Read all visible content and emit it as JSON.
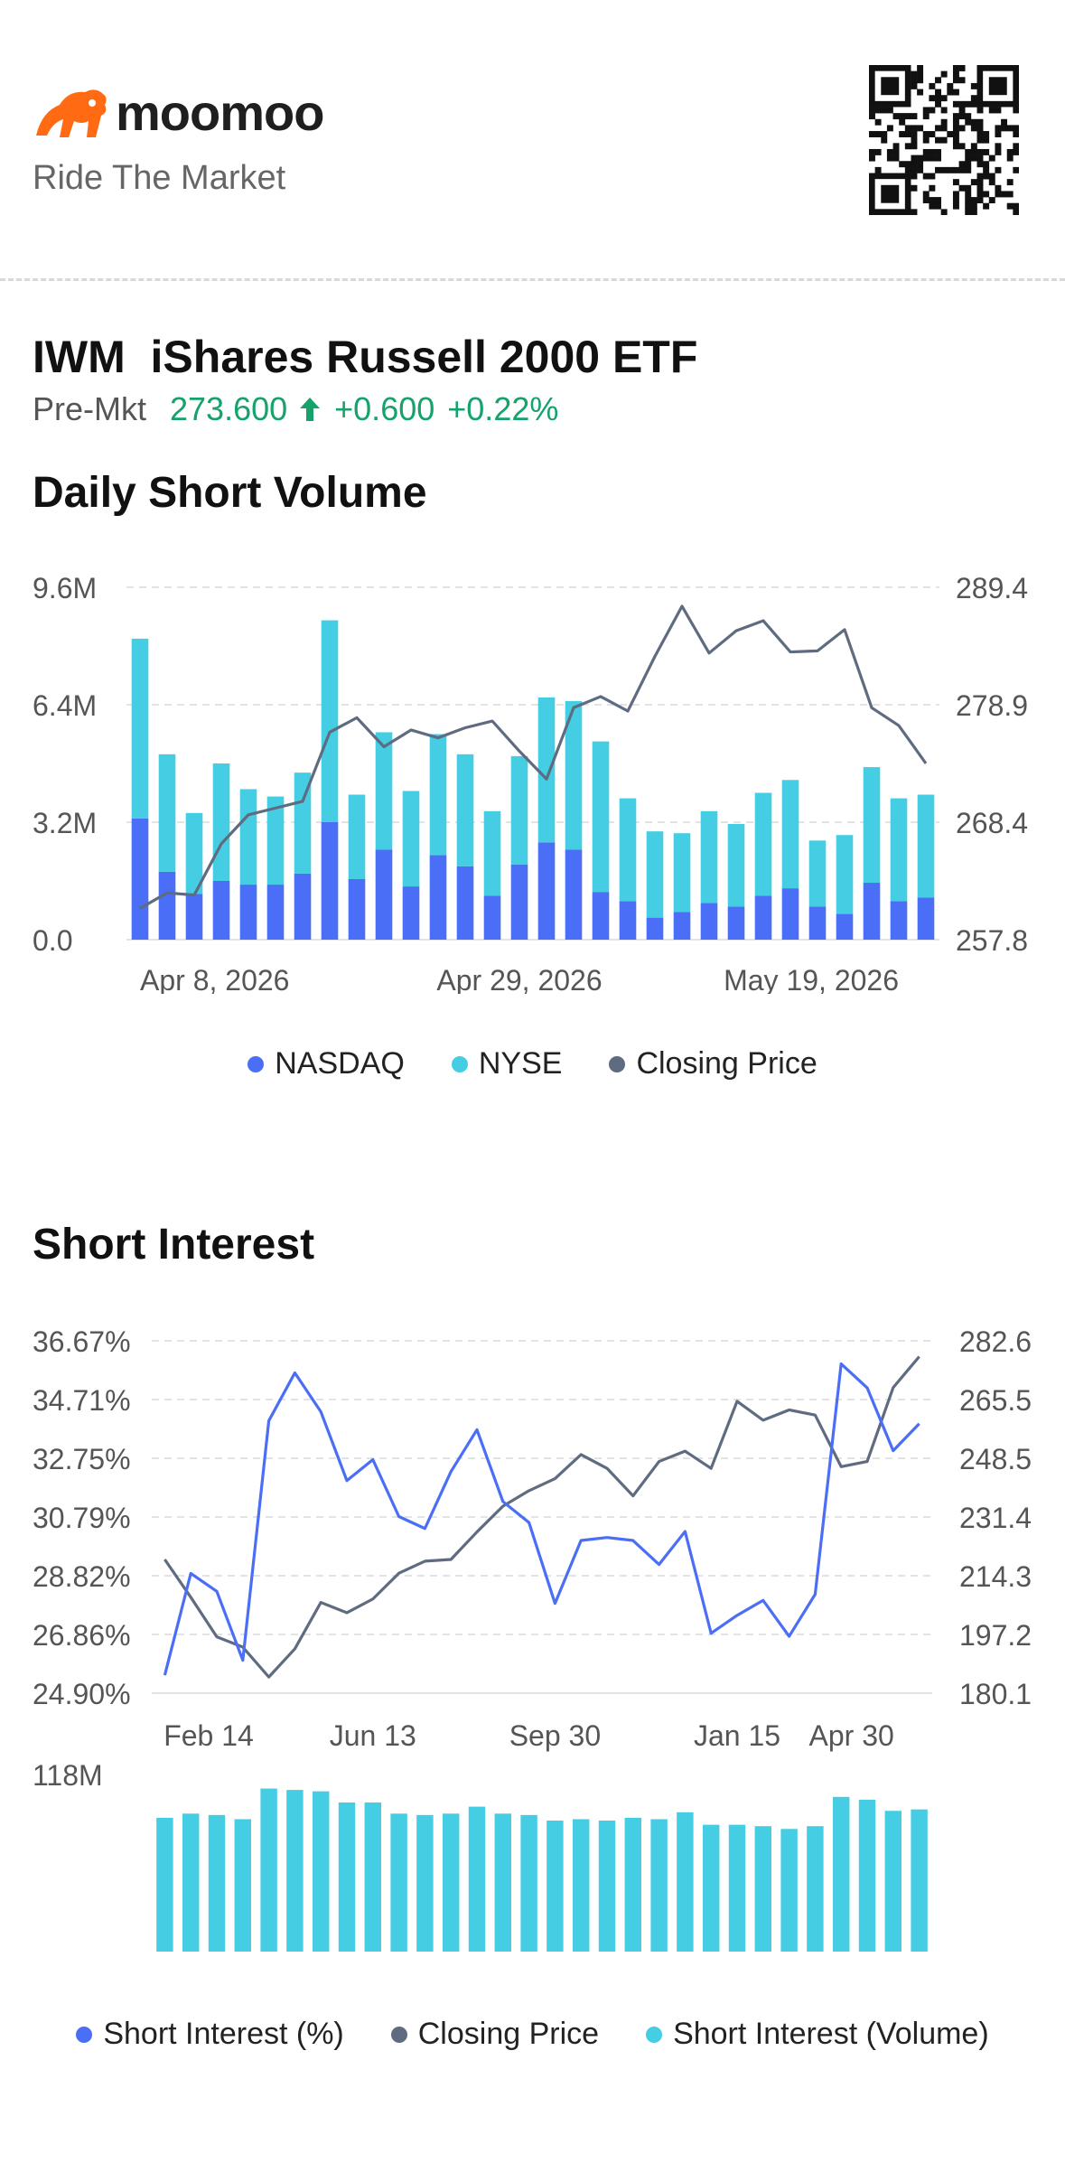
{
  "brand": {
    "name": "moomoo",
    "tagline": "Ride The Market",
    "color": "#ff6a13"
  },
  "ticker": {
    "symbol": "IWM",
    "name": "iShares Russell 2000 ETF",
    "session": "Pre-Mkt",
    "price": "273.600",
    "change": "+0.600",
    "change_pct": "+0.22%",
    "up_color": "#15a36b"
  },
  "daily_short_volume": {
    "title": "Daily Short Volume",
    "legend": [
      {
        "label": "NASDAQ",
        "color": "#4a6ef5"
      },
      {
        "label": "NYSE",
        "color": "#45cde3"
      },
      {
        "label": "Closing Price",
        "color": "#5f6b80"
      }
    ]
  },
  "short_interest": {
    "title": "Short Interest",
    "legend": [
      {
        "label": "Short Interest (%)",
        "color": "#4a6ef5"
      },
      {
        "label": "Closing Price",
        "color": "#5f6b80"
      },
      {
        "label": "Short Interest (Volume)",
        "color": "#45cde3"
      }
    ]
  },
  "chart_data": [
    {
      "type": "bar",
      "title": "Daily Short Volume",
      "stacked": true,
      "y_left_ticks": [
        "9.6M",
        "6.4M",
        "3.2M",
        "0.0"
      ],
      "y_right_ticks": [
        "289.4",
        "278.9",
        "268.4",
        "257.8"
      ],
      "ylim_left": [
        0,
        9.6
      ],
      "ylim_right": [
        257.8,
        289.4
      ],
      "x_tick_labels": [
        "Apr 8, 2026",
        "Apr 29, 2026",
        "May 19, 2026"
      ],
      "x_tick_index": [
        0,
        14,
        28
      ],
      "series": [
        {
          "name": "NASDAQ",
          "color": "#4a6ef5",
          "values": [
            3.3,
            1.85,
            1.25,
            1.6,
            1.5,
            1.5,
            1.8,
            3.2,
            1.65,
            2.45,
            1.45,
            2.3,
            2.0,
            1.2,
            2.05,
            2.65,
            2.45,
            1.3,
            1.05,
            0.6,
            0.75,
            1.0,
            0.9,
            1.2,
            1.4,
            0.9,
            0.7,
            1.55,
            1.05,
            1.15
          ]
        },
        {
          "name": "NYSE",
          "color": "#45cde3",
          "values": [
            4.9,
            3.2,
            2.2,
            3.2,
            2.6,
            2.4,
            2.75,
            5.5,
            2.3,
            3.2,
            2.6,
            3.3,
            3.05,
            2.3,
            2.95,
            3.95,
            4.05,
            4.1,
            2.8,
            2.35,
            2.15,
            2.5,
            2.25,
            2.8,
            2.95,
            1.8,
            2.15,
            3.15,
            2.8,
            2.8
          ]
        },
        {
          "name": "Closing Price",
          "color": "#5f6b80",
          "axis": "right",
          "values": [
            260.6,
            262.0,
            261.8,
            266.4,
            269.0,
            269.6,
            270.2,
            276.4,
            277.7,
            275.1,
            276.6,
            275.9,
            276.8,
            277.4,
            274.7,
            272.2,
            278.6,
            279.6,
            278.3,
            283.2,
            287.7,
            283.5,
            285.5,
            286.4,
            283.6,
            283.7,
            285.6,
            278.6,
            277.0,
            273.6
          ]
        }
      ]
    },
    {
      "type": "line",
      "title": "Short Interest",
      "y_left_ticks": [
        "36.67%",
        "34.71%",
        "32.75%",
        "30.79%",
        "28.82%",
        "26.86%",
        "24.90%"
      ],
      "y_right_ticks": [
        "282.6",
        "265.5",
        "248.5",
        "231.4",
        "214.3",
        "197.2",
        "180.1"
      ],
      "ylim_left": [
        24.9,
        36.67
      ],
      "ylim_right": [
        180.1,
        282.6
      ],
      "x_tick_labels": [
        "Feb 14",
        "Jun 13",
        "Sep 30",
        "Jan 15",
        "Apr 30"
      ],
      "x_tick_index": [
        1,
        8,
        15,
        22,
        28
      ],
      "series": [
        {
          "name": "Short Interest (%)",
          "color": "#4a6ef5",
          "axis": "left",
          "values": [
            25.5,
            28.9,
            28.3,
            26.0,
            34.0,
            35.6,
            34.3,
            32.0,
            32.7,
            30.8,
            30.4,
            32.3,
            33.7,
            31.3,
            30.6,
            27.9,
            30.0,
            30.1,
            30.0,
            29.2,
            30.3,
            26.9,
            27.5,
            28.0,
            26.8,
            28.2,
            35.9,
            35.1,
            33.0,
            33.9
          ]
        },
        {
          "name": "Closing Price",
          "color": "#5f6b80",
          "axis": "right",
          "values": [
            219.0,
            208.0,
            196.5,
            193.5,
            184.8,
            193.0,
            206.5,
            203.5,
            207.5,
            215.0,
            218.5,
            219.0,
            227.0,
            234.5,
            239.0,
            242.5,
            249.5,
            245.5,
            237.5,
            247.5,
            250.5,
            245.5,
            265.0,
            259.5,
            262.5,
            261.0,
            246.0,
            247.5,
            269.0,
            278.0
          ]
        },
        {
          "name": "Short Interest (Volume)",
          "color": "#45cde3",
          "type": "bar",
          "ylim": [
            0,
            118
          ],
          "y_tick": "118M",
          "values": [
            96,
            99,
            98,
            95,
            117,
            116,
            115,
            107,
            107,
            99,
            98,
            99,
            104,
            99,
            98,
            94,
            95,
            94,
            96,
            95,
            100,
            91,
            91,
            90,
            88,
            90,
            111,
            109,
            101,
            102
          ]
        }
      ]
    }
  ]
}
